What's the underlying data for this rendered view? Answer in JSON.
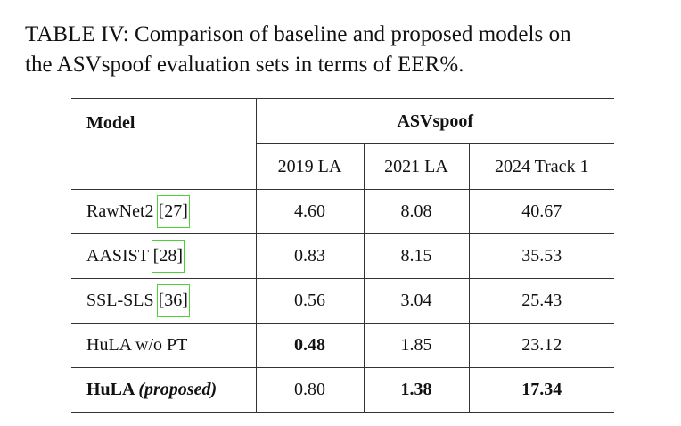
{
  "caption": {
    "line1": "TABLE IV: Comparison of baseline and proposed models on",
    "line2": "the ASVspoof evaluation sets in terms of EER%."
  },
  "table": {
    "header_model": "Model",
    "header_group": "ASVspoof",
    "columns": [
      "2019 LA",
      "2021 LA",
      "2024 Track 1"
    ],
    "rows": [
      {
        "name": "RawNet2 ",
        "cite": "[27]",
        "values": [
          "4.60",
          "8.08",
          "40.67"
        ]
      },
      {
        "name": "AASIST ",
        "cite": "[28]",
        "values": [
          "0.83",
          "8.15",
          "35.53"
        ]
      },
      {
        "name": "SSL-SLS ",
        "cite": "[36]",
        "values": [
          "0.56",
          "3.04",
          "25.43"
        ]
      },
      {
        "name": "HuLA w/o PT",
        "cite": "",
        "values": [
          "0.48",
          "1.85",
          "23.12"
        ]
      },
      {
        "name": "HuLA",
        "name_suffix": "(proposed)",
        "values": [
          "0.80",
          "1.38",
          "17.34"
        ]
      }
    ]
  },
  "colors": {
    "citation_highlight": "#4cd137"
  }
}
